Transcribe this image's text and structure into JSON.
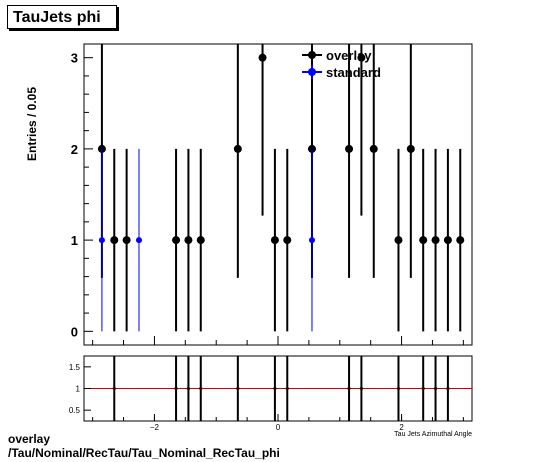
{
  "title": "TauJets phi",
  "footer": {
    "line1": "overlay",
    "line2": "/Tau/Nominal/RecTau/Tau_Nominal_RecTau_phi"
  },
  "colors": {
    "overlay": "#000000",
    "standard": "#0000ff",
    "ratio_line": "#cc0000"
  },
  "chart_data": [
    {
      "type": "scatter",
      "ylabel": "Entries / 0.05",
      "xlabel": "Tau Jets Azimuthal Angle",
      "xlim": [
        -3.14,
        3.14
      ],
      "ylim": [
        -0.15,
        3.15
      ],
      "yticks": [
        0,
        1,
        2,
        3
      ],
      "legend": {
        "placement": "top-right",
        "entries": [
          "overlay",
          "standard"
        ]
      },
      "series": [
        {
          "name": "overlay",
          "x": [
            -2.85,
            -2.65,
            -2.45,
            -1.65,
            -1.45,
            -1.25,
            -0.65,
            -0.25,
            -0.05,
            0.15,
            0.55,
            1.15,
            1.35,
            1.55,
            1.95,
            2.15,
            2.35,
            2.55,
            2.75,
            2.95
          ],
          "y": [
            2,
            1,
            1,
            1,
            1,
            1,
            2,
            3,
            1,
            1,
            2,
            2,
            3,
            2,
            1,
            2,
            1,
            1,
            1,
            1
          ]
        },
        {
          "name": "standard",
          "x": [
            -2.85,
            -2.25,
            0.55
          ],
          "y": [
            1,
            1,
            1
          ]
        }
      ]
    },
    {
      "type": "scatter",
      "xlim": [
        -3.14,
        3.14
      ],
      "ylim": [
        0.25,
        1.75
      ],
      "yticks": [
        0.5,
        1,
        1.5
      ],
      "xticks": [
        -2,
        0,
        2
      ],
      "reference_line": 1,
      "series": [
        {
          "name": "ratio",
          "x": [
            -2.65,
            -1.65,
            -1.45,
            -1.25,
            -0.65,
            -0.05,
            0.15,
            1.15,
            1.35,
            1.95,
            2.35,
            2.55,
            2.75
          ],
          "y": [
            1,
            1,
            1,
            1,
            1,
            1,
            1,
            1,
            1,
            1,
            1,
            1,
            1
          ]
        }
      ]
    }
  ]
}
